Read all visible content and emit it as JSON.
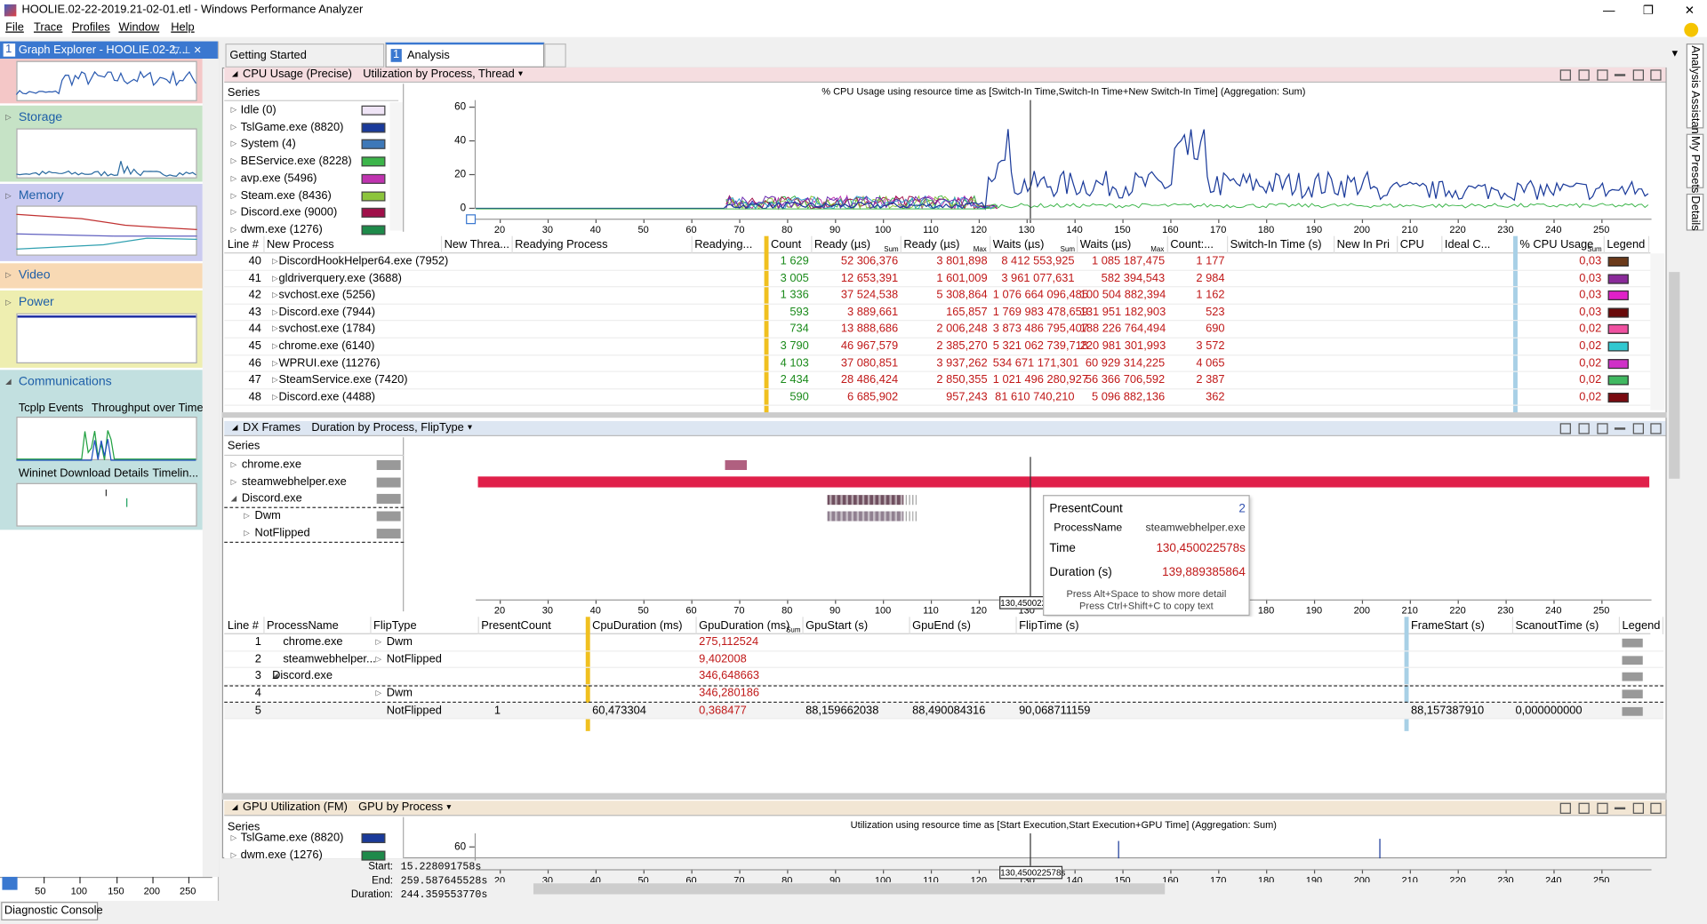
{
  "window": {
    "title": "HOOLIE.02-22-2019.21-02-01.etl - Windows Performance Analyzer"
  },
  "menu": [
    "File",
    "Trace",
    "Profiles",
    "Window",
    "Help"
  ],
  "side_tabs": [
    "Analysis Assistant",
    "My Presets",
    "Details"
  ],
  "graph_explorer": {
    "number": "1",
    "title": "Graph Explorer - HOOLIE.02-2...",
    "sections": [
      "Storage",
      "Memory",
      "Video",
      "Power",
      "Communications"
    ],
    "comm_items": [
      "Tcplp Events",
      "Throughput over Time",
      "Wininet Download Details",
      "Timelin..."
    ],
    "ruler_ticks": [
      "50",
      "100",
      "150",
      "200",
      "250"
    ],
    "diagnostic_console": "Diagnostic Console"
  },
  "tabs": [
    {
      "label": "Getting Started"
    },
    {
      "number": "1",
      "label": "Analysis"
    }
  ],
  "timeline": {
    "start_label": "Start:",
    "start": "15.228091758s",
    "end_label": "End:",
    "end": "259.587645528s",
    "duration_label": "Duration:",
    "duration": "244.359553770s"
  },
  "xticks": [
    "20",
    "30",
    "40",
    "50",
    "60",
    "70",
    "80",
    "90",
    "100",
    "110",
    "120",
    "130",
    "140",
    "150",
    "160",
    "170",
    "180",
    "190",
    "200",
    "210",
    "220",
    "230",
    "240",
    "250"
  ],
  "cpu_panel": {
    "title": "CPU Usage (Precise)",
    "preset": "Utilization by Process, Thread",
    "chart_title": "% CPU Usage using resource time as [Switch-In Time,Switch-In Time+New Switch-In Time] (Aggregation: Sum)",
    "series_header": "Series",
    "series": [
      {
        "name": "Idle (0)",
        "color": "#efe4f6"
      },
      {
        "name": "TslGame.exe (8820)",
        "color": "#1a3a9a"
      },
      {
        "name": "System (4)",
        "color": "#3d78b8"
      },
      {
        "name": "BEService.exe (8228)",
        "color": "#3cb54a"
      },
      {
        "name": "avp.exe (5496)",
        "color": "#c033b0"
      },
      {
        "name": "Steam.exe (8436)",
        "color": "#8cc43c"
      },
      {
        "name": "Discord.exe (9000)",
        "color": "#a0104a"
      },
      {
        "name": "dwm.exe (1276)",
        "color": "#1e8a4a"
      }
    ],
    "yticks": [
      "60",
      "40",
      "20",
      "0"
    ],
    "columns": [
      {
        "label": "Line #"
      },
      {
        "label": "New Process"
      },
      {
        "label": "New Threa..."
      },
      {
        "label": "Readying Process"
      },
      {
        "label": "Readying..."
      },
      {
        "label": "Count"
      },
      {
        "label": "Ready (µs)",
        "sub": "Sum"
      },
      {
        "label": "Ready (µs)",
        "sub": "Max"
      },
      {
        "label": "Waits (µs)",
        "sub": "Sum"
      },
      {
        "label": "Waits (µs)",
        "sub": "Max"
      },
      {
        "label": "Count:..."
      },
      {
        "label": "Switch-In Time (s)"
      },
      {
        "label": "New In Pri"
      },
      {
        "label": "CPU"
      },
      {
        "label": "Ideal C..."
      },
      {
        "label": "% CPU Usage",
        "sub": "Sum"
      },
      {
        "label": "Legend"
      }
    ],
    "rows": [
      {
        "line": "40",
        "process": "DiscordHookHelper64.exe (7952)",
        "count": "1 629",
        "ready_sum": "52 306,376",
        "ready_max": "3 801,898",
        "waits_sum": "8 412 553,925",
        "waits_max": "1 085 187,475",
        "count2": "1 177",
        "usage": "0,03",
        "legend": "#6b3a1a"
      },
      {
        "line": "41",
        "process": "gldriverquery.exe (3688)",
        "count": "3 005",
        "ready_sum": "12 653,391",
        "ready_max": "1 601,009",
        "waits_sum": "3 961 077,631",
        "waits_max": "582 394,543",
        "count2": "2 984",
        "usage": "0,03",
        "legend": "#8a2a9a"
      },
      {
        "line": "42",
        "process": "svchost.exe (5256)",
        "count": "1 336",
        "ready_sum": "37 524,538",
        "ready_max": "5 308,864",
        "waits_sum": "1 076 664 096,485",
        "waits_max": "100 504 882,394",
        "count2": "1 162",
        "usage": "0,03",
        "legend": "#e020c8"
      },
      {
        "line": "43",
        "process": "Discord.exe (7944)",
        "count": "593",
        "ready_sum": "3 889,661",
        "ready_max": "165,857",
        "waits_sum": "1 769 983 478,659",
        "waits_max": "131 951 182,903",
        "count2": "523",
        "usage": "0,03",
        "legend": "#6a0a0a"
      },
      {
        "line": "44",
        "process": "svchost.exe (1784)",
        "count": "734",
        "ready_sum": "13 888,686",
        "ready_max": "2 006,248",
        "waits_sum": "3 873 486 795,407",
        "waits_max": "188 226 764,494",
        "count2": "690",
        "usage": "0,02",
        "legend": "#f050a0"
      },
      {
        "line": "45",
        "process": "chrome.exe (6140)",
        "count": "3 790",
        "ready_sum": "46 967,579",
        "ready_max": "2 385,270",
        "waits_sum": "5 321 062 739,718",
        "waits_max": "220 981 301,993",
        "count2": "3 572",
        "usage": "0,02",
        "legend": "#30c8d0"
      },
      {
        "line": "46",
        "process": "WPRUI.exe (11276)",
        "count": "4 103",
        "ready_sum": "37 080,851",
        "ready_max": "3 937,262",
        "waits_sum": "534 671 171,301",
        "waits_max": "60 929 314,225",
        "count2": "4 065",
        "usage": "0,02",
        "legend": "#d030c8"
      },
      {
        "line": "47",
        "process": "SteamService.exe (7420)",
        "count": "2 434",
        "ready_sum": "28 486,424",
        "ready_max": "2 850,355",
        "waits_sum": "1 021 496 280,927",
        "waits_max": "56 366 706,592",
        "count2": "2 387",
        "usage": "0,02",
        "legend": "#40b860"
      },
      {
        "line": "48",
        "process": "Discord.exe (4488)",
        "count": "590",
        "ready_sum": "6 685,902",
        "ready_max": "957,243",
        "waits_sum": "81 610 740,210",
        "waits_max": "5 096 882,136",
        "count2": "362",
        "usage": "0,02",
        "legend": "#7a0a10"
      }
    ]
  },
  "dx_panel": {
    "title": "DX Frames",
    "preset": "Duration by Process, FlipType",
    "series_header": "Series",
    "series": [
      "chrome.exe",
      "steamwebhelper.exe",
      "Discord.exe",
      "Dwm",
      "NotFlipped"
    ],
    "cursor_label": "130,450022",
    "tooltip": {
      "rows": [
        {
          "key": "PresentCount",
          "value": "2"
        },
        {
          "key": "ProcessName",
          "value": "steamwebhelper.exe"
        },
        {
          "key": "Time",
          "value": "130,450022578s"
        },
        {
          "key": "Duration (s)",
          "value": "139,889385864"
        }
      ],
      "hint1": "Press Alt+Space to show more detail",
      "hint2": "Press Ctrl+Shift+C to copy text"
    },
    "columns": [
      {
        "label": "Line #"
      },
      {
        "label": "ProcessName"
      },
      {
        "label": "FlipType"
      },
      {
        "label": "PresentCount"
      },
      {
        "label": "CpuDuration (ms)"
      },
      {
        "label": "GpuDuration (ms)",
        "sub": "Sum"
      },
      {
        "label": "GpuStart (s)"
      },
      {
        "label": "GpuEnd (s)"
      },
      {
        "label": "FlipTime (s)"
      },
      {
        "label": "FrameStart (s)"
      },
      {
        "label": "ScanoutTime (s)"
      },
      {
        "label": "Legend"
      }
    ],
    "rows": [
      {
        "line": "1",
        "process": "chrome.exe",
        "flip": "Dwm",
        "gpu_dur": "275,112524"
      },
      {
        "line": "2",
        "process": "steamwebhelper...",
        "flip": "NotFlipped",
        "gpu_dur": "9,402008"
      },
      {
        "line": "3",
        "process": "Discord.exe",
        "gpu_dur": "346,648663"
      },
      {
        "line": "4",
        "flip": "Dwm",
        "gpu_dur": "346,280186"
      },
      {
        "line": "5",
        "flip": "NotFlipped",
        "present": "1",
        "cpu_dur": "60,473304",
        "gpu_dur": "0,368477",
        "gpu_start": "88,159662038",
        "gpu_end": "88,490084316",
        "flip_time": "90,068711159",
        "frame_start": "88,157387910",
        "scanout": "0,000000000"
      }
    ]
  },
  "gpu_panel": {
    "title": "GPU Utilization (FM)",
    "preset": "GPU by Process",
    "series_header": "Series",
    "chart_title": "Utilization using resource time as [Start Execution,Start Execution+GPU Time] (Aggregation: Sum)",
    "series": [
      {
        "name": "TslGame.exe (8820)",
        "color": "#1a3a9a"
      },
      {
        "name": "dwm.exe (1276)",
        "color": "#1e8a4a"
      }
    ],
    "yticks": [
      "60"
    ],
    "cursor_label": "130,450022578s"
  }
}
